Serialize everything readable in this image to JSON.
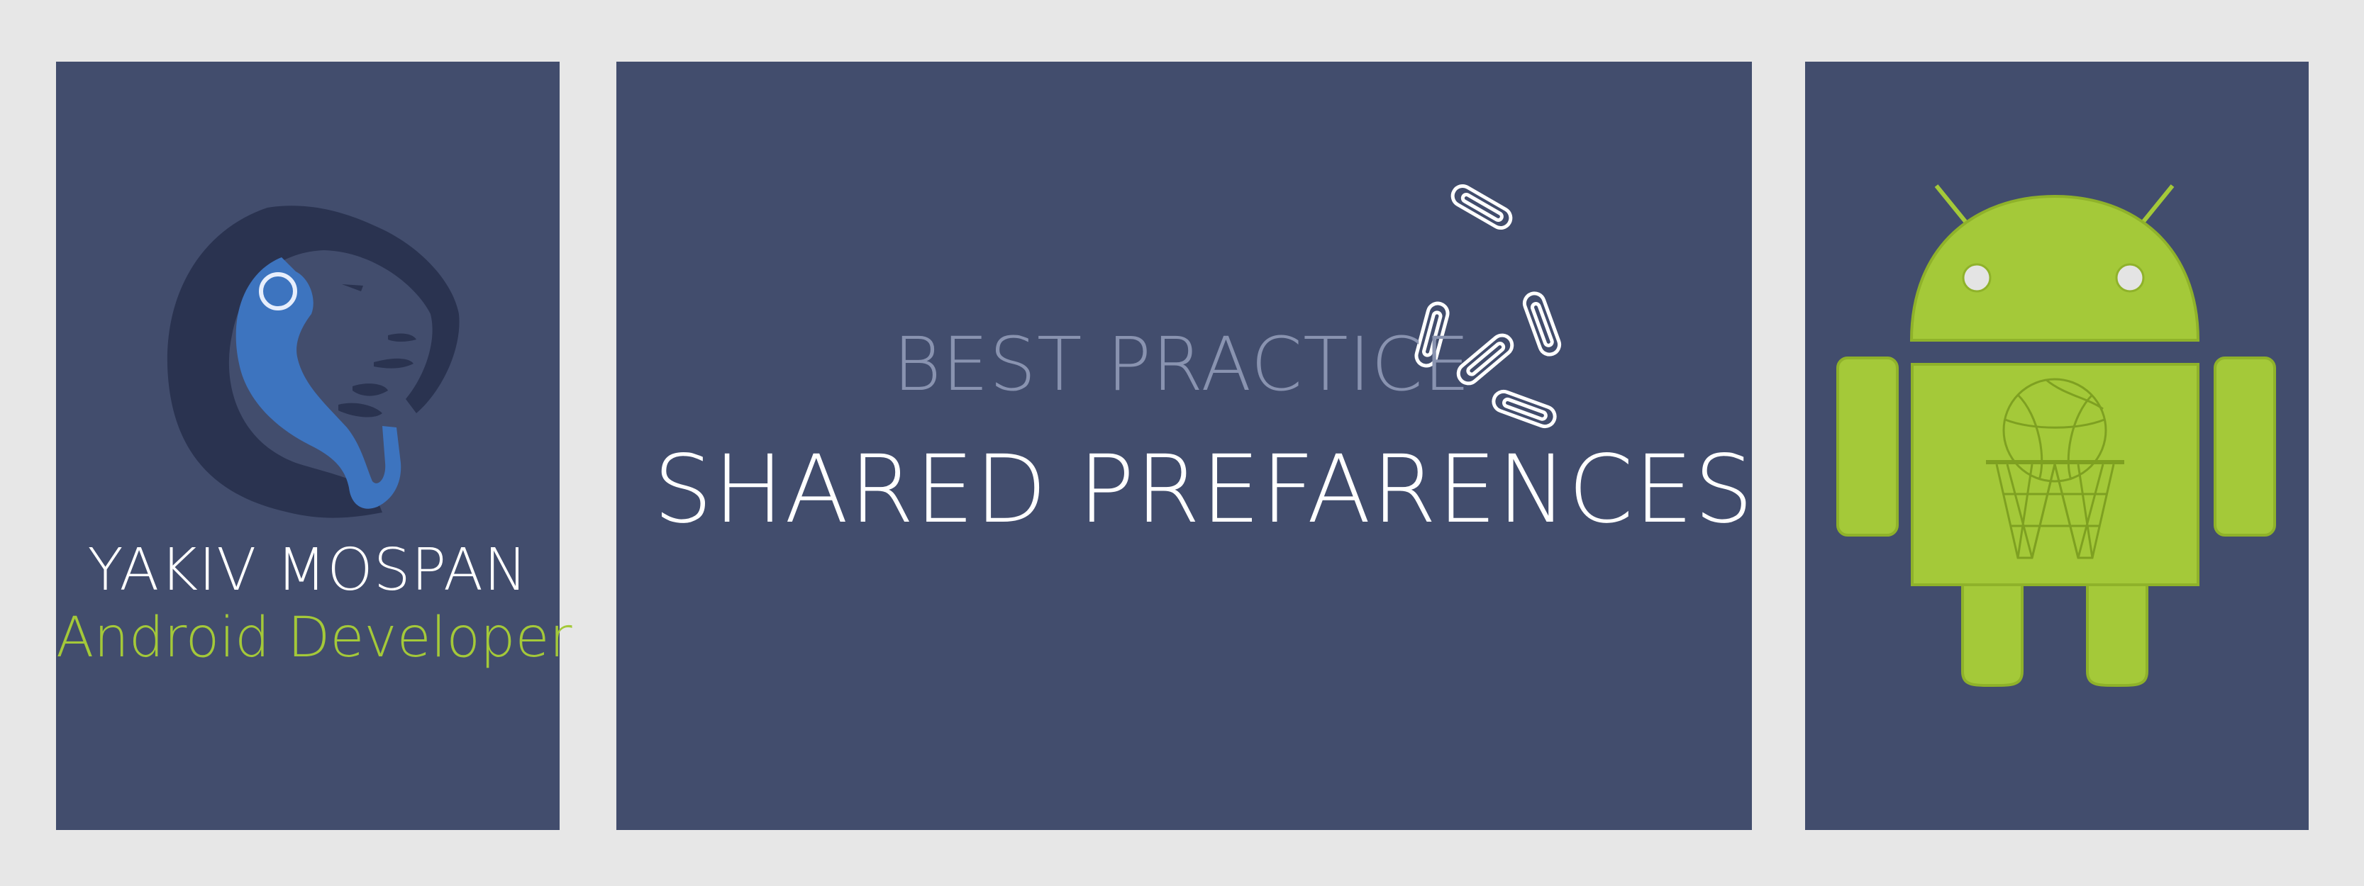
{
  "profile": {
    "name": "YAKIV MOSPAN",
    "role": "Android Developer",
    "logo_icon": "lion-head-logo-icon"
  },
  "topic": {
    "subtitle": "BEST PRACTICE",
    "title": "SHARED PREFARENCES",
    "decoration_icon": "paperclips-icon"
  },
  "illustration": {
    "icon": "android-robot-basketball-icon"
  },
  "colors": {
    "background": "#e7e7e7",
    "panel": "#424d6d",
    "accent_green": "#a4c939",
    "subtitle_gray": "#8993b0",
    "logo_dark": "#2a3350",
    "logo_blue": "#3d74bf"
  }
}
